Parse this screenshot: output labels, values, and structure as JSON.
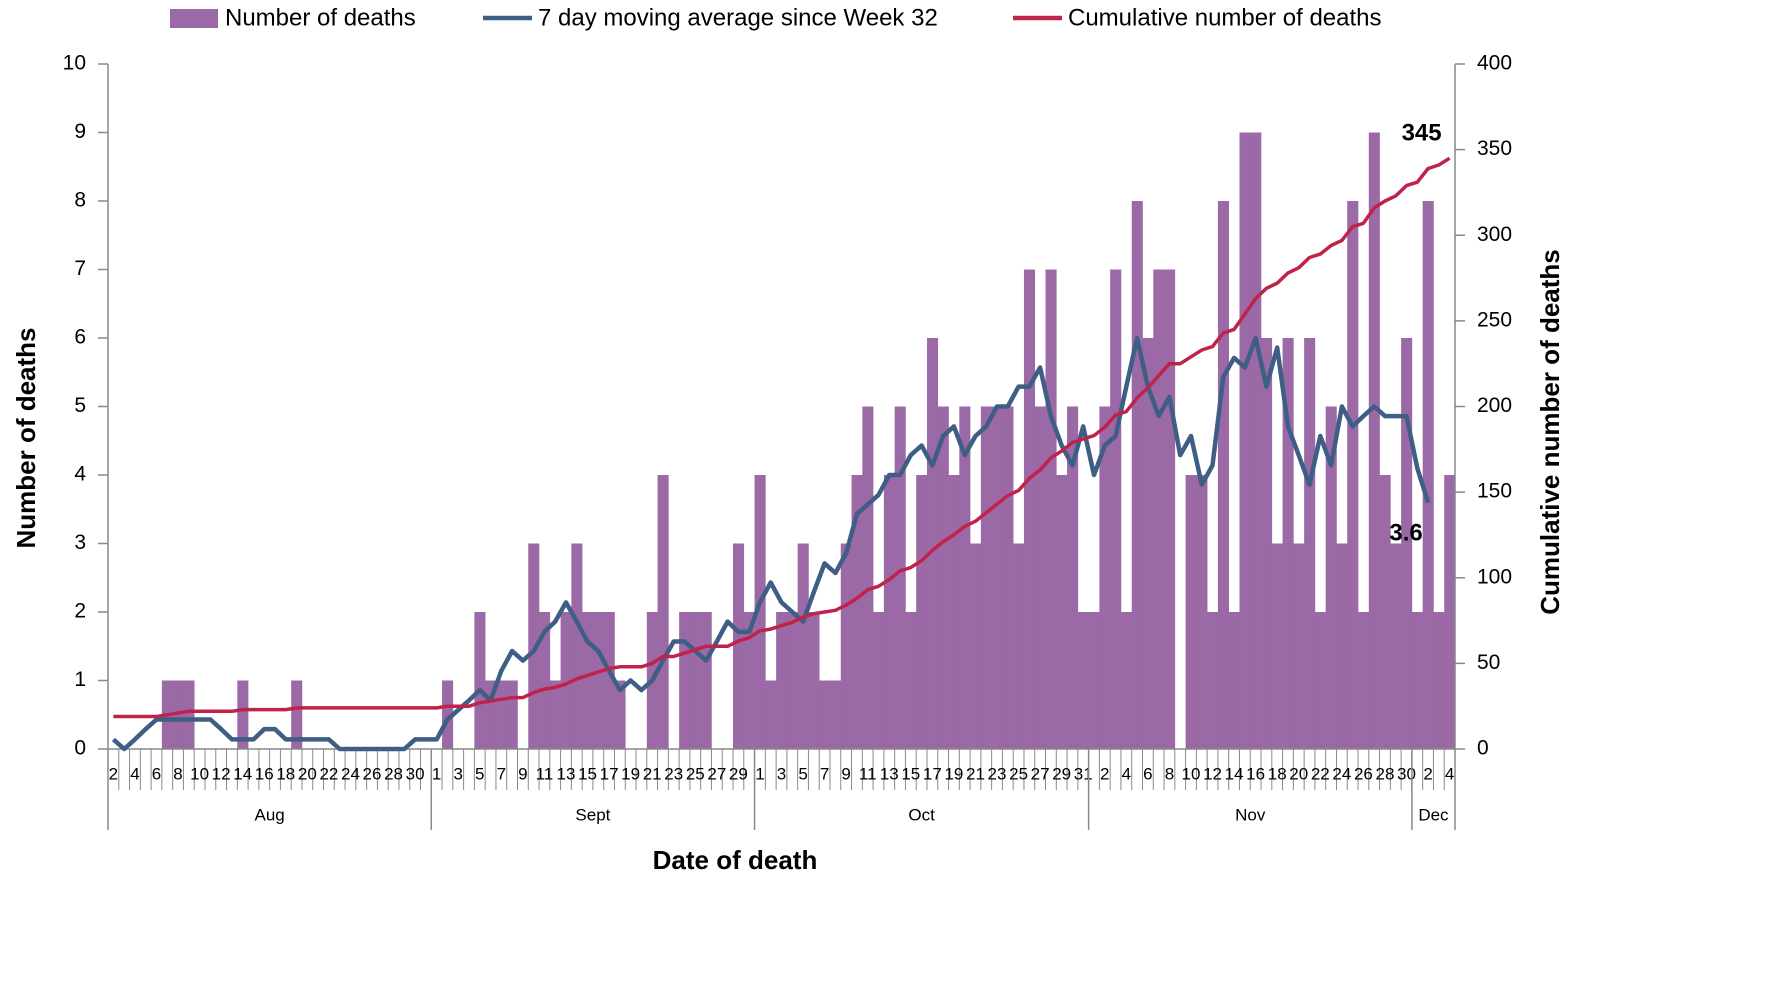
{
  "chart_data": {
    "type": "bar",
    "x_label": "Date of death",
    "y_label": "Number of deaths",
    "y2_label": "Cumulative number of deaths",
    "categories": [
      "2",
      null,
      "4",
      null,
      "6",
      null,
      "8",
      null,
      "10",
      null,
      "12",
      null,
      "14",
      null,
      "16",
      null,
      "18",
      null,
      "20",
      null,
      "22",
      null,
      "24",
      null,
      "26",
      null,
      "28",
      null,
      "30",
      null,
      "1",
      null,
      "3",
      null,
      "5",
      null,
      "7",
      null,
      "9",
      null,
      "11",
      null,
      "13",
      null,
      "15",
      null,
      "17",
      null,
      "19",
      null,
      "21",
      null,
      "23",
      null,
      "25",
      null,
      "27",
      null,
      "29",
      null,
      "1",
      null,
      "3",
      null,
      "5",
      null,
      "7",
      null,
      "9",
      null,
      "11",
      null,
      "13",
      null,
      "15",
      null,
      "17",
      null,
      "19",
      null,
      "21",
      null,
      "23",
      null,
      "25",
      null,
      "27",
      null,
      "29",
      null,
      "31",
      null,
      "2",
      null,
      "4",
      null,
      "6",
      null,
      "8",
      null,
      "10",
      null,
      "12",
      null,
      "14",
      null,
      "16",
      null,
      "18",
      null,
      "20",
      null,
      "22",
      null,
      "24",
      null,
      "26",
      null,
      "28",
      null,
      "30",
      null,
      "2",
      null,
      "4"
    ],
    "month_groups": [
      {
        "label": "Aug",
        "days": 30
      },
      {
        "label": "Sept",
        "days": 30
      },
      {
        "label": "Oct",
        "days": 31
      },
      {
        "label": "Nov",
        "days": 30
      },
      {
        "label": "Dec",
        "days": 4
      }
    ],
    "series": [
      {
        "name": "Number of deaths",
        "type": "bar",
        "color": "#9b69a5",
        "values": [
          0,
          0,
          0,
          0,
          0,
          1,
          1,
          1,
          0,
          0,
          0,
          0,
          1,
          0,
          0,
          0,
          0,
          1,
          0,
          0,
          0,
          0,
          0,
          0,
          0,
          0,
          0,
          0,
          0,
          0,
          0,
          1,
          0,
          0,
          2,
          1,
          1,
          1,
          0,
          3,
          2,
          1,
          2,
          3,
          2,
          2,
          2,
          1,
          0,
          0,
          2,
          4,
          0,
          2,
          2,
          2,
          0,
          0,
          3,
          2,
          4,
          1,
          2,
          2,
          3,
          2,
          1,
          1,
          3,
          4,
          5,
          2,
          4,
          5,
          2,
          4,
          6,
          5,
          4,
          5,
          3,
          5,
          5,
          5,
          3,
          7,
          5,
          7,
          4,
          5,
          2,
          2,
          5,
          7,
          2,
          8,
          6,
          7,
          7,
          0,
          4,
          4,
          2,
          8,
          2,
          9,
          9,
          6,
          3,
          6,
          3,
          6,
          2,
          5,
          3,
          8,
          2,
          9,
          4,
          3,
          6,
          2,
          8,
          2,
          4
        ]
      },
      {
        "name": "7 day moving average since Week 32",
        "type": "line",
        "color": "#3e5e86",
        "values": [
          0.14,
          0,
          0.14,
          0.29,
          0.43,
          0.43,
          0.43,
          0.43,
          0.43,
          0.43,
          0.29,
          0.14,
          0.14,
          0.14,
          0.29,
          0.29,
          0.14,
          0.14,
          0.14,
          0.14,
          0.14,
          0,
          0,
          0,
          0,
          0,
          0,
          0,
          0.14,
          0.14,
          0.14,
          0.43,
          0.57,
          0.71,
          0.86,
          0.71,
          1.14,
          1.43,
          1.29,
          1.43,
          1.71,
          1.86,
          2.14,
          1.86,
          1.57,
          1.43,
          1.14,
          0.86,
          1.0,
          0.86,
          1.0,
          1.29,
          1.57,
          1.57,
          1.43,
          1.29,
          1.57,
          1.86,
          1.71,
          1.71,
          2.14,
          2.43,
          2.14,
          2.0,
          1.86,
          2.29,
          2.71,
          2.57,
          2.86,
          3.43,
          3.57,
          3.71,
          4.0,
          4.0,
          4.29,
          4.43,
          4.14,
          4.57,
          4.71,
          4.29,
          4.57,
          4.71,
          5.0,
          5.0,
          5.29,
          5.29,
          5.57,
          4.86,
          4.43,
          4.14,
          4.71,
          4.0,
          4.43,
          4.57,
          5.29,
          6.0,
          5.29,
          4.86,
          5.14,
          4.29,
          4.57,
          3.86,
          4.14,
          5.43,
          5.71,
          5.57,
          6.0,
          5.29,
          5.86,
          4.71,
          4.29,
          3.86,
          4.57,
          4.14,
          5.0,
          4.71,
          4.86,
          5.0,
          4.86,
          4.86,
          4.86,
          4.1,
          3.6,
          null,
          null
        ],
        "labeled_index": 122
      },
      {
        "name": "Cumulative number of deaths",
        "type": "line",
        "axis": "y2",
        "color": "#c0234a",
        "values": [
          19,
          19,
          19,
          19,
          19,
          20,
          21,
          22,
          22,
          22,
          22,
          22,
          23,
          23,
          23,
          23,
          23,
          24,
          24,
          24,
          24,
          24,
          24,
          24,
          24,
          24,
          24,
          24,
          24,
          24,
          24,
          25,
          25,
          25,
          27,
          28,
          29,
          30,
          30,
          33,
          35,
          36,
          38,
          41,
          43,
          45,
          47,
          48,
          48,
          48,
          50,
          54,
          54,
          56,
          58,
          60,
          60,
          60,
          63,
          65,
          69,
          70,
          72,
          74,
          77,
          79,
          80,
          81,
          84,
          88,
          93,
          95,
          99,
          104,
          106,
          110,
          116,
          121,
          125,
          130,
          133,
          138,
          143,
          148,
          151,
          158,
          163,
          170,
          174,
          179,
          181,
          183,
          188,
          195,
          197,
          205,
          211,
          218,
          225,
          225,
          229,
          233,
          235,
          243,
          245,
          254,
          263,
          269,
          272,
          278,
          281,
          287,
          289,
          294,
          297,
          305,
          307,
          316,
          320,
          323,
          329,
          331,
          339,
          341,
          345
        ],
        "labeled_index": 124
      }
    ],
    "ylim": [
      0,
      10
    ],
    "yticks": [
      0,
      1,
      2,
      3,
      4,
      5,
      6,
      7,
      8,
      9,
      10
    ],
    "y2lim": [
      0,
      400
    ],
    "y2ticks": [
      0,
      50,
      100,
      150,
      200,
      250,
      300,
      350,
      400
    ],
    "legend": "top"
  }
}
